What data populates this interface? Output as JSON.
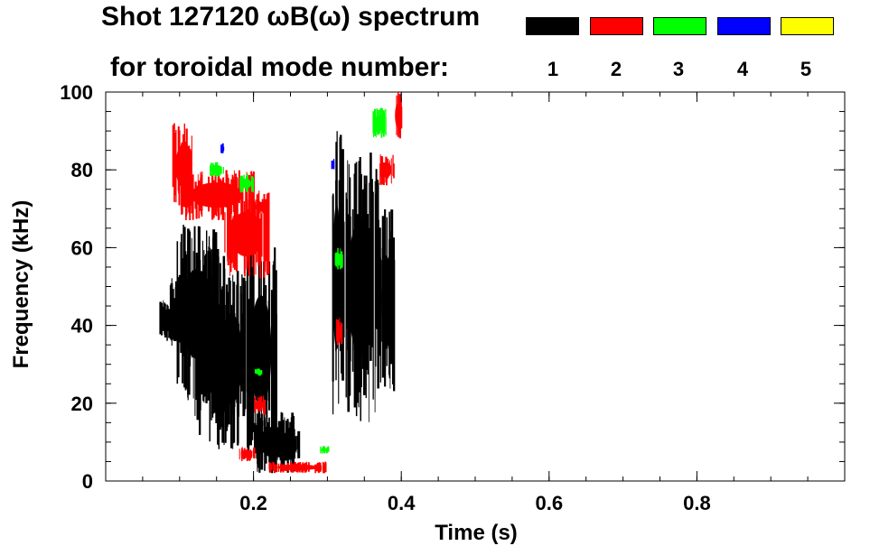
{
  "header": {
    "title_line1": "Shot 127120 ωB(ω) spectrum",
    "title_line2": "for toroidal mode number:",
    "legend": [
      {
        "label": "1",
        "color": "#000000"
      },
      {
        "label": "2",
        "color": "#ff0000"
      },
      {
        "label": "3",
        "color": "#00ff00"
      },
      {
        "label": "4",
        "color": "#0000ff"
      },
      {
        "label": "5",
        "color": "#ffff00"
      }
    ]
  },
  "chart_data": {
    "type": "heatmap",
    "title": "Shot 127120 ωB(ω) spectrum",
    "xlabel": "Time (s)",
    "ylabel": "Frequency (kHz)",
    "xlim": [
      0.0,
      1.0
    ],
    "ylim": [
      0,
      100
    ],
    "x_ticks": [
      0.2,
      0.4,
      0.6,
      0.8
    ],
    "x_tick_labels": [
      "0.2",
      "0.4",
      "0.6",
      "0.8"
    ],
    "y_ticks": [
      0,
      20,
      40,
      60,
      80,
      100
    ],
    "y_tick_labels": [
      "0",
      "20",
      "40",
      "60",
      "80",
      "100"
    ],
    "x_minor_step": 0.05,
    "y_minor_step": 5,
    "series": [
      {
        "name": "n=1",
        "color": "#000000",
        "regions": [
          {
            "t0": 0.07,
            "t1": 0.1,
            "f0": 36,
            "f1": 47
          },
          {
            "t0": 0.085,
            "t1": 0.125,
            "f0": 34,
            "f1": 53
          },
          {
            "t0": 0.095,
            "t1": 0.15,
            "f0": 20,
            "f1": 66
          },
          {
            "t0": 0.12,
            "t1": 0.16,
            "f0": 10,
            "f1": 60
          },
          {
            "t0": 0.15,
            "t1": 0.19,
            "f0": 8,
            "f1": 55
          },
          {
            "t0": 0.19,
            "t1": 0.23,
            "f0": 5,
            "f1": 62
          },
          {
            "t0": 0.2,
            "t1": 0.255,
            "f0": 2,
            "f1": 18
          },
          {
            "t0": 0.22,
            "t1": 0.26,
            "f0": 5,
            "f1": 14
          },
          {
            "t0": 0.305,
            "t1": 0.32,
            "f0": 15,
            "f1": 90
          },
          {
            "t0": 0.32,
            "t1": 0.37,
            "f0": 15,
            "f1": 85
          },
          {
            "t0": 0.37,
            "t1": 0.39,
            "f0": 22,
            "f1": 70
          }
        ]
      },
      {
        "name": "n=2",
        "color": "#ff0000",
        "regions": [
          {
            "t0": 0.1,
            "t1": 0.2,
            "f0": 67,
            "f1": 80
          },
          {
            "t0": 0.09,
            "t1": 0.12,
            "f0": 70,
            "f1": 92
          },
          {
            "t0": 0.16,
            "t1": 0.22,
            "f0": 52,
            "f1": 75
          },
          {
            "t0": 0.2,
            "t1": 0.22,
            "f0": 68,
            "f1": 73
          },
          {
            "t0": 0.2,
            "t1": 0.215,
            "f0": 17,
            "f1": 22
          },
          {
            "t0": 0.22,
            "t1": 0.3,
            "f0": 2,
            "f1": 5
          },
          {
            "t0": 0.18,
            "t1": 0.2,
            "f0": 5,
            "f1": 9
          },
          {
            "t0": 0.31,
            "t1": 0.32,
            "f0": 34,
            "f1": 42
          },
          {
            "t0": 0.39,
            "t1": 0.4,
            "f0": 88,
            "f1": 100
          },
          {
            "t0": 0.37,
            "t1": 0.39,
            "f0": 76,
            "f1": 84
          }
        ]
      },
      {
        "name": "n=3",
        "color": "#00ff00",
        "regions": [
          {
            "t0": 0.18,
            "t1": 0.2,
            "f0": 74,
            "f1": 79
          },
          {
            "t0": 0.14,
            "t1": 0.16,
            "f0": 78,
            "f1": 82
          },
          {
            "t0": 0.31,
            "t1": 0.32,
            "f0": 54,
            "f1": 60
          },
          {
            "t0": 0.36,
            "t1": 0.38,
            "f0": 88,
            "f1": 96
          },
          {
            "t0": 0.2,
            "t1": 0.21,
            "f0": 27,
            "f1": 29
          },
          {
            "t0": 0.29,
            "t1": 0.3,
            "f0": 7,
            "f1": 9
          }
        ]
      },
      {
        "name": "n=4",
        "color": "#0000ff",
        "regions": [
          {
            "t0": 0.155,
            "t1": 0.16,
            "f0": 84,
            "f1": 87
          },
          {
            "t0": 0.305,
            "t1": 0.31,
            "f0": 80,
            "f1": 83
          }
        ]
      }
    ]
  },
  "axes_labels": {
    "x": "Time (s)",
    "y": "Frequency (kHz)"
  }
}
